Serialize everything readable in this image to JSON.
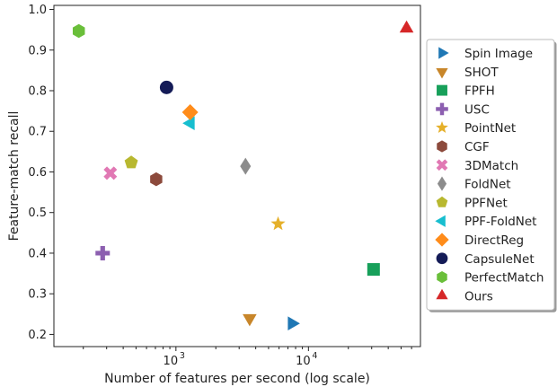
{
  "chart_data": {
    "type": "scatter",
    "title": "",
    "xlabel": "Number of features per second (log scale)",
    "ylabel": "Feature-match recall",
    "x_scale": "log",
    "xlim": [
      120,
      70000
    ],
    "ylim": [
      0.17,
      1.01
    ],
    "x_ticks": [
      {
        "value": 1000,
        "base": "10",
        "exp": "3"
      },
      {
        "value": 10000,
        "base": "10",
        "exp": "4"
      }
    ],
    "y_ticks": [
      {
        "value": 0.2,
        "label": "0.2"
      },
      {
        "value": 0.3,
        "label": "0.3"
      },
      {
        "value": 0.4,
        "label": "0.4"
      },
      {
        "value": 0.5,
        "label": "0.5"
      },
      {
        "value": 0.6,
        "label": "0.6"
      },
      {
        "value": 0.7,
        "label": "0.7"
      },
      {
        "value": 0.8,
        "label": "0.8"
      },
      {
        "value": 0.9,
        "label": "0.9"
      },
      {
        "value": 1.0,
        "label": "1.0"
      }
    ],
    "grid": false,
    "legend_position": "right",
    "frontier_shaded_region": true,
    "frontier_color": "#eceeed",
    "series": [
      {
        "name": "Spin Image",
        "marker": "triangle-right",
        "color": "#1f77b4",
        "x": 7500,
        "y": 0.227
      },
      {
        "name": "SHOT",
        "marker": "triangle-down",
        "color": "#c8862a",
        "x": 3600,
        "y": 0.24
      },
      {
        "name": "FPFH",
        "marker": "square",
        "color": "#17a05a",
        "x": 31000,
        "y": 0.36
      },
      {
        "name": "USC",
        "marker": "plus",
        "color": "#8c5fb0",
        "x": 280,
        "y": 0.4
      },
      {
        "name": "PointNet",
        "marker": "star",
        "color": "#e5b02a",
        "x": 5900,
        "y": 0.472
      },
      {
        "name": "CGF",
        "marker": "hexagon",
        "color": "#8c4a3c",
        "x": 710,
        "y": 0.582
      },
      {
        "name": "3DMatch",
        "marker": "x",
        "color": "#e178b4",
        "x": 320,
        "y": 0.597
      },
      {
        "name": "FoldNet",
        "marker": "diamond-thin",
        "color": "#8c8c8c",
        "x": 3350,
        "y": 0.614
      },
      {
        "name": "PPFNet",
        "marker": "pentagon",
        "color": "#b8b830",
        "x": 460,
        "y": 0.623
      },
      {
        "name": "PPF-FoldNet",
        "marker": "triangle-left",
        "color": "#17becf",
        "x": 1290,
        "y": 0.72
      },
      {
        "name": "DirectReg",
        "marker": "diamond",
        "color": "#ff8c1a",
        "x": 1280,
        "y": 0.747
      },
      {
        "name": "CapsuleNet",
        "marker": "circle",
        "color": "#141b57",
        "x": 850,
        "y": 0.808
      },
      {
        "name": "PerfectMatch",
        "marker": "hexagon",
        "color": "#6abf3a",
        "x": 185,
        "y": 0.947
      },
      {
        "name": "Ours",
        "marker": "triangle-up",
        "color": "#d62728",
        "x": 55000,
        "y": 0.953
      }
    ]
  }
}
